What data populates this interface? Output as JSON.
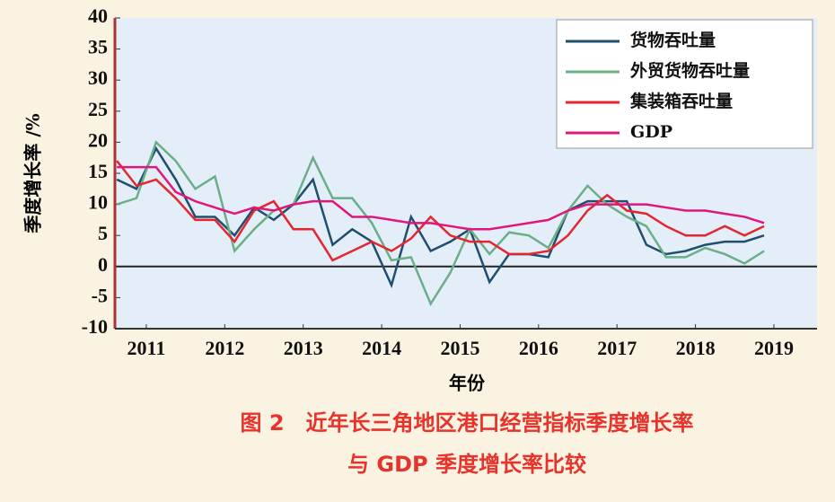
{
  "chart_data": {
    "type": "line",
    "title": [
      "图 2　近年长三角地区港口经营指标季度增长率",
      "与 GDP 季度增长率比较"
    ],
    "x_label": "年份",
    "y_label": "季度增长率 /%",
    "x": [
      2010.625,
      2010.875,
      2011.125,
      2011.375,
      2011.625,
      2011.875,
      2012.125,
      2012.375,
      2012.625,
      2012.875,
      2013.125,
      2013.375,
      2013.625,
      2013.875,
      2014.125,
      2014.375,
      2014.625,
      2014.875,
      2015.125,
      2015.375,
      2015.625,
      2015.875,
      2016.125,
      2016.375,
      2016.625,
      2016.875,
      2017.125,
      2017.375,
      2017.625,
      2017.875,
      2018.125,
      2018.375,
      2018.625,
      2018.875
    ],
    "series": [
      {
        "name": "货物吞吐量",
        "color": "#1f4e6e",
        "values": [
          14,
          12.5,
          19,
          14,
          8,
          8,
          5,
          9.5,
          7.5,
          10,
          14,
          3.5,
          6,
          4,
          -3,
          8,
          2.5,
          4,
          6,
          -2.5,
          2,
          2,
          1.5,
          9,
          10.5,
          10.5,
          10.5,
          3.5,
          2,
          2.5,
          3.5,
          4,
          4,
          5
        ]
      },
      {
        "name": "外贸货物吞吐量",
        "color": "#6aaf88",
        "values": [
          10,
          11,
          20,
          17,
          12.5,
          14.5,
          2.5,
          6,
          9,
          10,
          17.5,
          11,
          11,
          7,
          1,
          1.5,
          -6,
          -1,
          6,
          2,
          5.5,
          5,
          3,
          9,
          13,
          10,
          8,
          6.5,
          1.5,
          1.5,
          3,
          2,
          0.5,
          2.5
        ]
      },
      {
        "name": "集装箱吞吐量",
        "color": "#e3262f",
        "values": [
          17,
          13,
          14,
          11,
          7.5,
          7.5,
          4,
          9,
          10.5,
          6,
          6,
          1,
          2.5,
          4,
          2.5,
          4.5,
          8,
          5,
          4,
          4,
          2,
          2,
          2.5,
          5,
          9,
          11.5,
          9,
          8.5,
          6.5,
          5,
          5,
          6.5,
          5,
          6.5
        ]
      },
      {
        "name": "GDP",
        "color": "#e0167a",
        "values": [
          16,
          16,
          16,
          12,
          10.5,
          9.5,
          8.5,
          9.5,
          9,
          10,
          10.5,
          10.5,
          8,
          8,
          7.5,
          7,
          7,
          6.5,
          6,
          6,
          6.5,
          7,
          7.5,
          9,
          10,
          10,
          10,
          10,
          9.5,
          9,
          9,
          8.5,
          8,
          7
        ]
      }
    ],
    "xlim": [
      2010.6,
      2019.55
    ],
    "xticks": [
      2011,
      2012,
      2013,
      2014,
      2015,
      2016,
      2017,
      2018,
      2019
    ],
    "ylim": [
      -10,
      40
    ],
    "yticks": [
      -10,
      -5,
      0,
      5,
      10,
      15,
      20,
      25,
      30,
      35,
      40
    ],
    "legend": "upper right"
  }
}
